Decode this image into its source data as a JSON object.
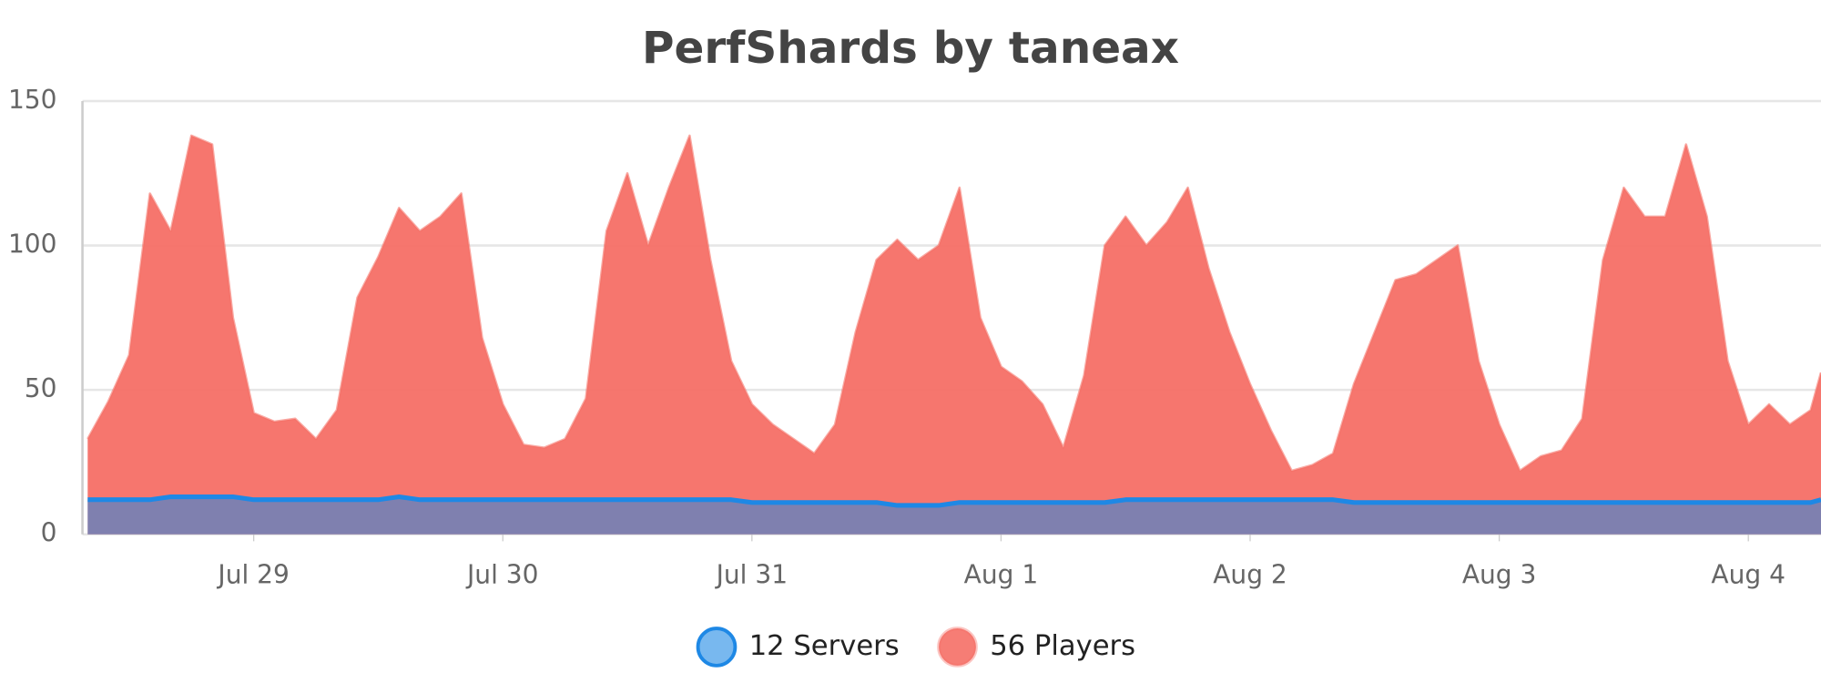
{
  "chart_data": {
    "type": "area",
    "title": "PerfShards by taneax",
    "x": [
      -16,
      -14,
      -12,
      -10,
      -8,
      -6,
      -4,
      -2,
      0,
      2,
      4,
      6,
      8,
      10,
      12,
      14,
      16,
      18,
      20,
      22,
      24,
      26,
      28,
      30,
      32,
      34,
      36,
      38,
      40,
      42,
      44,
      46,
      48,
      50,
      52,
      54,
      56,
      58,
      60,
      62,
      64,
      66,
      68,
      70,
      72,
      74,
      76,
      78,
      80,
      82,
      84,
      86,
      88,
      90,
      92,
      94,
      96,
      98,
      100,
      102,
      104,
      106,
      108,
      110,
      112,
      114,
      116,
      118,
      120,
      122,
      124,
      126,
      128,
      130,
      132,
      134,
      136,
      138,
      140,
      142,
      144,
      146,
      148,
      150,
      151
    ],
    "series": [
      {
        "name": "56 Players",
        "color": "#f56f66",
        "values": [
          33,
          46,
          62,
          118,
          105,
          138,
          135,
          75,
          42,
          39,
          40,
          33,
          43,
          82,
          96,
          113,
          105,
          110,
          118,
          68,
          45,
          31,
          30,
          33,
          47,
          105,
          125,
          100,
          120,
          138,
          95,
          60,
          45,
          38,
          33,
          28,
          38,
          70,
          95,
          102,
          95,
          100,
          120,
          75,
          58,
          53,
          45,
          30,
          55,
          100,
          110,
          100,
          108,
          120,
          92,
          70,
          52,
          36,
          22,
          24,
          28,
          52,
          70,
          88,
          90,
          95,
          100,
          60,
          38,
          22,
          27,
          29,
          40,
          95,
          120,
          110,
          110,
          135,
          110,
          60,
          38,
          45,
          38,
          43,
          56
        ]
      },
      {
        "name": "12 Servers",
        "color": "#1e88e5",
        "values": [
          12,
          12,
          12,
          12,
          13,
          13,
          13,
          13,
          12,
          12,
          12,
          12,
          12,
          12,
          12,
          13,
          12,
          12,
          12,
          12,
          12,
          12,
          12,
          12,
          12,
          12,
          12,
          12,
          12,
          12,
          12,
          12,
          11,
          11,
          11,
          11,
          11,
          11,
          11,
          10,
          10,
          10,
          11,
          11,
          11,
          11,
          11,
          11,
          11,
          11,
          12,
          12,
          12,
          12,
          12,
          12,
          12,
          12,
          12,
          12,
          12,
          11,
          11,
          11,
          11,
          11,
          11,
          11,
          11,
          11,
          11,
          11,
          11,
          11,
          11,
          11,
          11,
          11,
          11,
          11,
          11,
          11,
          11,
          11,
          12
        ]
      }
    ],
    "xlim": [
      -16.5,
      151
    ],
    "xticks": [
      {
        "value": 0,
        "label": "Jul 29"
      },
      {
        "value": 24,
        "label": "Jul 30"
      },
      {
        "value": 48,
        "label": "Jul 31"
      },
      {
        "value": 72,
        "label": "Aug 1"
      },
      {
        "value": 96,
        "label": "Aug 2"
      },
      {
        "value": 120,
        "label": "Aug 3"
      },
      {
        "value": 144,
        "label": "Aug 4"
      }
    ],
    "ylim": [
      0,
      150
    ],
    "yticks": [
      0,
      50,
      100,
      150
    ],
    "grid": true
  }
}
